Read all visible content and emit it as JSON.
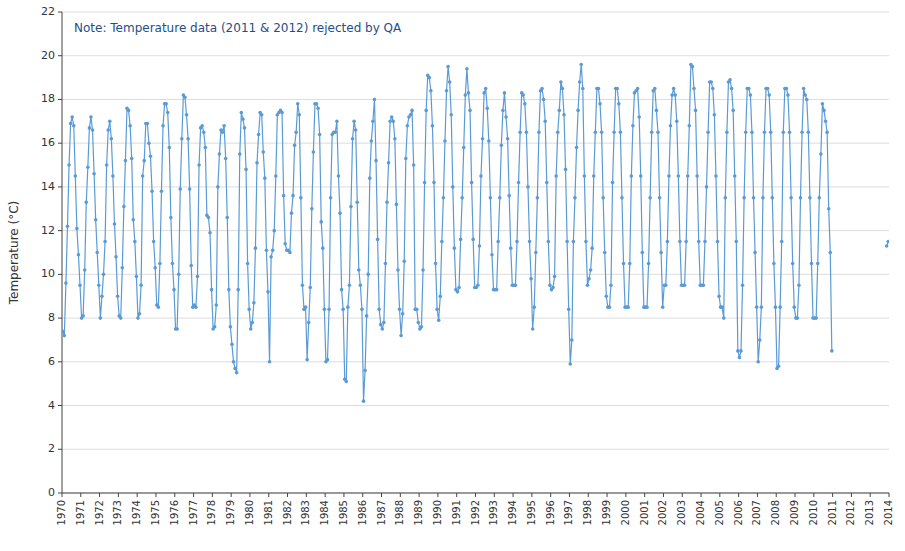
{
  "chart_data": {
    "type": "line",
    "ylabel": "Temperature (°C)",
    "annotation": "Note: Temperature data (2011 & 2012) rejected by QA",
    "xlim": [
      1970,
      2014
    ],
    "xticks": [
      1970,
      1971,
      1972,
      1973,
      1974,
      1975,
      1976,
      1977,
      1978,
      1979,
      1980,
      1981,
      1982,
      1983,
      1984,
      1985,
      1986,
      1987,
      1988,
      1989,
      1990,
      1991,
      1992,
      1993,
      1994,
      1995,
      1996,
      1997,
      1998,
      1999,
      2000,
      2001,
      2002,
      2003,
      2004,
      2005,
      2006,
      2007,
      2008,
      2009,
      2010,
      2011,
      2012,
      2013,
      2014
    ],
    "ylim": [
      0,
      22
    ],
    "yticks": [
      0,
      2,
      4,
      6,
      8,
      10,
      12,
      14,
      16,
      18,
      20,
      22
    ],
    "grid": true,
    "x": [
      1970.041667,
      1970.125,
      1970.208333,
      1970.291667,
      1970.375,
      1970.458333,
      1970.541667,
      1970.625,
      1970.708333,
      1970.791667,
      1970.875,
      1970.958333,
      1971.041667,
      1971.125,
      1971.208333,
      1971.291667,
      1971.375,
      1971.458333,
      1971.541667,
      1971.625,
      1971.708333,
      1971.791667,
      1971.875,
      1971.958333,
      1972.041667,
      1972.125,
      1972.208333,
      1972.291667,
      1972.375,
      1972.458333,
      1972.541667,
      1972.625,
      1972.708333,
      1972.791667,
      1972.875,
      1972.958333,
      1973.041667,
      1973.125,
      1973.208333,
      1973.291667,
      1973.375,
      1973.458333,
      1973.541667,
      1973.625,
      1973.708333,
      1973.791667,
      1973.875,
      1973.958333,
      1974.041667,
      1974.125,
      1974.208333,
      1974.291667,
      1974.375,
      1974.458333,
      1974.541667,
      1974.625,
      1974.708333,
      1974.791667,
      1974.875,
      1974.958333,
      1975.041667,
      1975.125,
      1975.208333,
      1975.291667,
      1975.375,
      1975.458333,
      1975.541667,
      1975.625,
      1975.708333,
      1975.791667,
      1975.875,
      1975.958333,
      1976.041667,
      1976.125,
      1976.208333,
      1976.291667,
      1976.375,
      1976.458333,
      1976.541667,
      1976.625,
      1976.708333,
      1976.791667,
      1976.875,
      1976.958333,
      1977.041667,
      1977.125,
      1977.208333,
      1977.291667,
      1977.375,
      1977.458333,
      1977.541667,
      1977.625,
      1977.708333,
      1977.791667,
      1977.875,
      1977.958333,
      1978.041667,
      1978.125,
      1978.208333,
      1978.291667,
      1978.375,
      1978.458333,
      1978.541667,
      1978.625,
      1978.708333,
      1978.791667,
      1978.875,
      1978.958333,
      1979.041667,
      1979.125,
      1979.208333,
      1979.291667,
      1979.375,
      1979.458333,
      1979.541667,
      1979.625,
      1979.708333,
      1979.791667,
      1979.875,
      1979.958333,
      1980.041667,
      1980.125,
      1980.208333,
      1980.291667,
      1980.375,
      1980.458333,
      1980.541667,
      1980.625,
      1980.708333,
      1980.791667,
      1980.875,
      1980.958333,
      1981.041667,
      1981.125,
      1981.208333,
      1981.291667,
      1981.375,
      1981.458333,
      1981.541667,
      1981.625,
      1981.708333,
      1981.791667,
      1981.875,
      1981.958333,
      1982.041667,
      1982.125,
      1982.208333,
      1982.291667,
      1982.375,
      1982.458333,
      1982.541667,
      1982.625,
      1982.708333,
      1982.791667,
      1982.875,
      1982.958333,
      1983.041667,
      1983.125,
      1983.208333,
      1983.291667,
      1983.375,
      1983.458333,
      1983.541667,
      1983.625,
      1983.708333,
      1983.791667,
      1983.875,
      1983.958333,
      1984.041667,
      1984.125,
      1984.208333,
      1984.291667,
      1984.375,
      1984.458333,
      1984.541667,
      1984.625,
      1984.708333,
      1984.791667,
      1984.875,
      1984.958333,
      1985.041667,
      1985.125,
      1985.208333,
      1985.291667,
      1985.375,
      1985.458333,
      1985.541667,
      1985.625,
      1985.708333,
      1985.791667,
      1985.875,
      1985.958333,
      1986.041667,
      1986.125,
      1986.208333,
      1986.291667,
      1986.375,
      1986.458333,
      1986.541667,
      1986.625,
      1986.708333,
      1986.791667,
      1986.875,
      1986.958333,
      1987.041667,
      1987.125,
      1987.208333,
      1987.291667,
      1987.375,
      1987.458333,
      1987.541667,
      1987.625,
      1987.708333,
      1987.791667,
      1987.875,
      1987.958333,
      1988.041667,
      1988.125,
      1988.208333,
      1988.291667,
      1988.375,
      1988.458333,
      1988.541667,
      1988.625,
      1988.708333,
      1988.791667,
      1988.875,
      1988.958333,
      1989.041667,
      1989.125,
      1989.208333,
      1989.291667,
      1989.375,
      1989.458333,
      1989.541667,
      1989.625,
      1989.708333,
      1989.791667,
      1989.875,
      1989.958333,
      1990.041667,
      1990.125,
      1990.208333,
      1990.291667,
      1990.375,
      1990.458333,
      1990.541667,
      1990.625,
      1990.708333,
      1990.791667,
      1990.875,
      1990.958333,
      1991.041667,
      1991.125,
      1991.208333,
      1991.291667,
      1991.375,
      1991.458333,
      1991.541667,
      1991.625,
      1991.708333,
      1991.791667,
      1991.875,
      1991.958333,
      1992.041667,
      1992.125,
      1992.208333,
      1992.291667,
      1992.375,
      1992.458333,
      1992.541667,
      1992.625,
      1992.708333,
      1992.791667,
      1992.875,
      1992.958333,
      1993.041667,
      1993.125,
      1993.208333,
      1993.291667,
      1993.375,
      1993.458333,
      1993.541667,
      1993.625,
      1993.708333,
      1993.791667,
      1993.875,
      1993.958333,
      1994.041667,
      1994.125,
      1994.208333,
      1994.291667,
      1994.375,
      1994.458333,
      1994.541667,
      1994.625,
      1994.708333,
      1994.791667,
      1994.875,
      1994.958333,
      1995.041667,
      1995.125,
      1995.208333,
      1995.291667,
      1995.375,
      1995.458333,
      1995.541667,
      1995.625,
      1995.708333,
      1995.791667,
      1995.875,
      1995.958333,
      1996.041667,
      1996.125,
      1996.208333,
      1996.291667,
      1996.375,
      1996.458333,
      1996.541667,
      1996.625,
      1996.708333,
      1996.791667,
      1996.875,
      1996.958333,
      1997.041667,
      1997.125,
      1997.208333,
      1997.291667,
      1997.375,
      1997.458333,
      1997.541667,
      1997.625,
      1997.708333,
      1997.791667,
      1997.875,
      1997.958333,
      1998.041667,
      1998.125,
      1998.208333,
      1998.291667,
      1998.375,
      1998.458333,
      1998.541667,
      1998.625,
      1998.708333,
      1998.791667,
      1998.875,
      1998.958333,
      1999.041667,
      1999.125,
      1999.208333,
      1999.291667,
      1999.375,
      1999.458333,
      1999.541667,
      1999.625,
      1999.708333,
      1999.791667,
      1999.875,
      1999.958333,
      2000.041667,
      2000.125,
      2000.208333,
      2000.291667,
      2000.375,
      2000.458333,
      2000.541667,
      2000.625,
      2000.708333,
      2000.791667,
      2000.875,
      2000.958333,
      2001.041667,
      2001.125,
      2001.208333,
      2001.291667,
      2001.375,
      2001.458333,
      2001.541667,
      2001.625,
      2001.708333,
      2001.791667,
      2001.875,
      2001.958333,
      2002.041667,
      2002.125,
      2002.208333,
      2002.291667,
      2002.375,
      2002.458333,
      2002.541667,
      2002.625,
      2002.708333,
      2002.791667,
      2002.875,
      2002.958333,
      2003.041667,
      2003.125,
      2003.208333,
      2003.291667,
      2003.375,
      2003.458333,
      2003.541667,
      2003.625,
      2003.708333,
      2003.791667,
      2003.875,
      2003.958333,
      2004.041667,
      2004.125,
      2004.208333,
      2004.291667,
      2004.375,
      2004.458333,
      2004.541667,
      2004.625,
      2004.708333,
      2004.791667,
      2004.875,
      2004.958333,
      2005.041667,
      2005.125,
      2005.208333,
      2005.291667,
      2005.375,
      2005.458333,
      2005.541667,
      2005.625,
      2005.708333,
      2005.791667,
      2005.875,
      2005.958333,
      2006.041667,
      2006.125,
      2006.208333,
      2006.291667,
      2006.375,
      2006.458333,
      2006.541667,
      2006.625,
      2006.708333,
      2006.791667,
      2006.875,
      2006.958333,
      2007.041667,
      2007.125,
      2007.208333,
      2007.291667,
      2007.375,
      2007.458333,
      2007.541667,
      2007.625,
      2007.708333,
      2007.791667,
      2007.875,
      2007.958333,
      2008.041667,
      2008.125,
      2008.208333,
      2008.291667,
      2008.375,
      2008.458333,
      2008.541667,
      2008.625,
      2008.708333,
      2008.791667,
      2008.875,
      2008.958333,
      2009.041667,
      2009.125,
      2009.208333,
      2009.291667,
      2009.375,
      2009.458333,
      2009.541667,
      2009.625,
      2009.708333,
      2009.791667,
      2009.875,
      2009.958333,
      2010.041667,
      2010.125,
      2010.208333,
      2010.291667,
      2010.375,
      2010.458333,
      2010.541667,
      2010.625,
      2010.708333,
      2010.791667,
      2010.875,
      2010.958333,
      2013.041667,
      2013.125,
      2013.208333,
      2013.291667,
      2013.375,
      2013.458333,
      2013.541667,
      2013.625,
      2013.708333,
      2013.791667,
      2013.875,
      2013.958333
    ],
    "series": [
      {
        "color": "#5b9bd5",
        "marker": "circle",
        "line_style": "solid",
        "values": [
          7.4,
          7.2,
          9.6,
          12.2,
          15.0,
          16.9,
          17.2,
          16.8,
          14.5,
          12.1,
          10.9,
          9.5,
          8.0,
          8.1,
          10.2,
          13.3,
          14.9,
          16.7,
          17.2,
          16.6,
          14.6,
          12.5,
          11.0,
          9.5,
          8.0,
          9.0,
          10.0,
          11.5,
          15.0,
          16.6,
          17.0,
          16.2,
          14.5,
          12.3,
          10.8,
          9.0,
          8.1,
          8.0,
          10.3,
          13.1,
          15.2,
          17.6,
          17.5,
          16.8,
          15.3,
          12.5,
          11.5,
          9.9,
          8.0,
          8.2,
          9.5,
          14.5,
          15.2,
          16.9,
          16.9,
          16.0,
          15.4,
          13.8,
          11.5,
          10.3,
          8.6,
          8.5,
          10.5,
          13.8,
          16.8,
          17.8,
          17.8,
          17.4,
          15.8,
          12.6,
          10.5,
          9.3,
          7.5,
          7.5,
          10.0,
          13.9,
          16.2,
          18.2,
          18.1,
          17.3,
          16.2,
          13.9,
          10.4,
          8.5,
          8.6,
          8.5,
          9.9,
          15.0,
          16.7,
          16.8,
          16.5,
          15.8,
          12.7,
          12.6,
          11.9,
          9.3,
          7.5,
          7.6,
          8.6,
          14.0,
          15.5,
          16.6,
          16.5,
          16.8,
          15.3,
          12.6,
          9.3,
          7.6,
          6.8,
          6.0,
          5.7,
          5.5,
          9.3,
          15.5,
          17.4,
          17.1,
          16.7,
          14.8,
          10.5,
          8.4,
          7.5,
          7.8,
          8.7,
          11.2,
          15.1,
          16.4,
          17.4,
          17.3,
          15.6,
          14.4,
          11.1,
          9.2,
          6.0,
          10.8,
          11.1,
          12.0,
          14.5,
          17.3,
          17.4,
          17.5,
          17.4,
          13.6,
          11.4,
          11.1,
          11.1,
          11.0,
          12.8,
          13.6,
          15.9,
          16.5,
          17.8,
          17.3,
          13.5,
          9.5,
          8.4,
          8.5,
          6.1,
          7.8,
          9.4,
          13.0,
          15.6,
          17.8,
          17.8,
          17.6,
          16.4,
          12.4,
          11.2,
          8.4,
          6.0,
          6.1,
          8.4,
          13.5,
          16.4,
          16.5,
          16.5,
          17.0,
          14.5,
          12.8,
          9.3,
          8.4,
          5.2,
          5.1,
          8.5,
          9.5,
          13.1,
          16.2,
          17.0,
          16.6,
          13.3,
          10.2,
          9.5,
          8.4,
          4.2,
          5.6,
          8.1,
          10.0,
          14.4,
          16.1,
          17.0,
          18.0,
          15.2,
          11.6,
          8.4,
          7.7,
          7.5,
          7.8,
          10.5,
          13.3,
          15.1,
          17.0,
          17.2,
          17.0,
          16.2,
          13.2,
          10.2,
          8.4,
          7.2,
          8.2,
          10.6,
          15.3,
          16.8,
          17.2,
          17.3,
          17.5,
          15.0,
          8.4,
          8.4,
          7.8,
          7.5,
          7.6,
          10.2,
          14.2,
          17.5,
          19.1,
          19.0,
          18.4,
          16.8,
          14.2,
          10.5,
          8.4,
          7.9,
          9.0,
          11.5,
          13.5,
          16.1,
          18.4,
          19.5,
          18.8,
          17.3,
          14.0,
          11.2,
          9.3,
          9.2,
          9.4,
          11.6,
          13.5,
          15.8,
          18.2,
          19.4,
          18.3,
          17.5,
          14.2,
          11.6,
          9.4,
          9.4,
          9.5,
          11.3,
          14.5,
          16.2,
          18.3,
          18.5,
          17.6,
          16.1,
          13.5,
          10.9,
          9.3,
          9.3,
          9.3,
          11.5,
          13.5,
          15.9,
          17.5,
          18.3,
          17.2,
          16.2,
          13.6,
          11.2,
          9.5,
          9.5,
          9.5,
          11.5,
          14.2,
          16.5,
          18.3,
          18.2,
          17.8,
          16.5,
          14.0,
          11.5,
          9.8,
          7.5,
          8.5,
          11.0,
          13.5,
          16.5,
          18.4,
          18.5,
          18.0,
          17.0,
          14.2,
          11.5,
          9.5,
          9.3,
          9.4,
          9.9,
          14.5,
          16.5,
          17.5,
          18.8,
          18.5,
          17.3,
          14.8,
          11.5,
          8.4,
          5.9,
          7.0,
          11.5,
          13.5,
          15.8,
          17.5,
          18.8,
          19.6,
          18.5,
          14.5,
          11.5,
          9.5,
          9.8,
          10.2,
          11.2,
          14.5,
          16.5,
          18.5,
          18.5,
          17.8,
          16.5,
          13.5,
          11.0,
          9.0,
          8.5,
          8.5,
          9.5,
          14.2,
          16.5,
          18.5,
          18.5,
          17.8,
          16.5,
          13.5,
          10.5,
          8.5,
          8.5,
          8.5,
          10.5,
          14.5,
          16.8,
          18.3,
          18.4,
          18.5,
          17.2,
          14.5,
          11.0,
          8.5,
          8.5,
          8.5,
          10.5,
          13.5,
          16.5,
          18.4,
          18.5,
          17.5,
          16.5,
          13.5,
          11.0,
          8.5,
          9.5,
          9.5,
          11.5,
          14.5,
          16.8,
          18.2,
          18.5,
          18.2,
          17.0,
          14.5,
          11.5,
          9.5,
          9.5,
          9.5,
          11.5,
          14.5,
          16.8,
          19.6,
          19.5,
          18.5,
          17.5,
          14.5,
          11.5,
          9.5,
          9.5,
          9.5,
          11.5,
          14.0,
          16.5,
          18.8,
          18.8,
          18.5,
          17.3,
          14.5,
          11.5,
          9.0,
          8.5,
          8.5,
          8.0,
          13.5,
          16.5,
          18.8,
          18.9,
          18.5,
          17.5,
          14.5,
          11.5,
          6.5,
          6.2,
          6.5,
          9.5,
          13.5,
          16.5,
          18.5,
          18.5,
          18.2,
          16.5,
          13.5,
          11.0,
          8.5,
          6.0,
          7.0,
          8.5,
          13.5,
          16.5,
          18.5,
          18.5,
          18.2,
          16.5,
          13.5,
          10.5,
          8.5,
          5.7,
          5.8,
          8.5,
          11.5,
          16.5,
          18.5,
          18.5,
          18.2,
          16.5,
          13.5,
          10.5,
          8.5,
          8.0,
          8.0,
          9.5,
          13.5,
          16.5,
          18.5,
          18.2,
          18.0,
          16.5,
          13.5,
          10.5,
          8.0,
          8.0,
          8.0,
          10.5,
          13.5,
          15.5,
          17.8,
          17.5,
          17.0,
          16.5,
          13.0,
          11.0,
          6.5,
          null,
          null,
          null,
          null,
          null,
          null,
          null,
          null,
          null,
          null,
          11.3,
          11.5
        ]
      }
    ]
  }
}
